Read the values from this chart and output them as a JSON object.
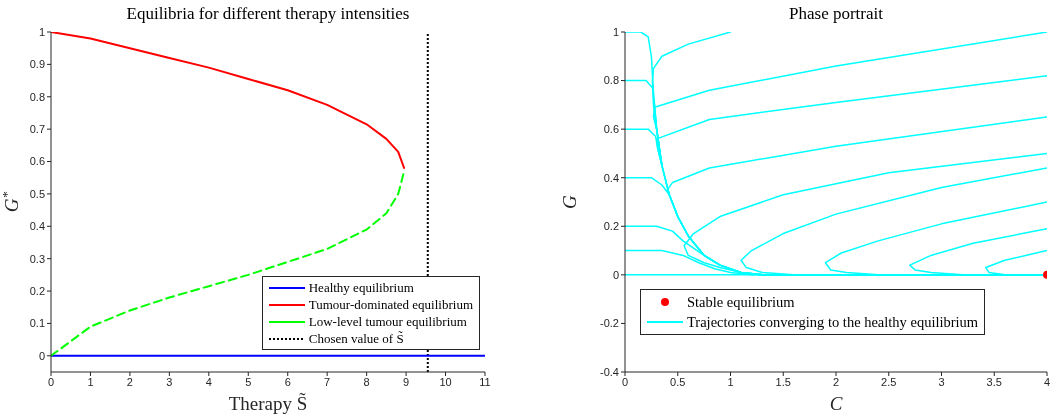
{
  "chart_data": [
    {
      "type": "line",
      "title": "Equilibria for different therapy intensities",
      "xlabel": "Therapy S̃",
      "ylabel": "G$^{*}$",
      "xlim": [
        0,
        11
      ],
      "xticks": [
        0,
        1,
        2,
        3,
        4,
        5,
        6,
        7,
        8,
        9,
        10,
        11
      ],
      "ylim": [
        -0.05,
        1
      ],
      "yticks": [
        0,
        0.1,
        0.2,
        0.3,
        0.4,
        0.5,
        0.6,
        0.7,
        0.8,
        0.9,
        1
      ],
      "legend": "bottom right",
      "series": [
        {
          "name": "Healthy equilibrium",
          "color": "#0000ff",
          "x": [
            0,
            11
          ],
          "values": [
            0,
            0
          ]
        },
        {
          "name": "Tumour-dominated equilibrium",
          "color": "#ff0000",
          "x": [
            0,
            1,
            2,
            3,
            4,
            5,
            6,
            7,
            8,
            8.5,
            8.8,
            8.95
          ],
          "values": [
            1,
            0.98,
            0.95,
            0.92,
            0.89,
            0.855,
            0.82,
            0.775,
            0.715,
            0.67,
            0.63,
            0.58
          ]
        },
        {
          "name": "Low-level tumour equilibrium",
          "color": "#00ff00",
          "line_style": "dashed",
          "x": [
            0,
            1,
            2,
            3,
            4,
            5,
            6,
            7,
            8,
            8.5,
            8.8,
            8.95
          ],
          "values": [
            0,
            0.09,
            0.14,
            0.18,
            0.215,
            0.25,
            0.29,
            0.33,
            0.39,
            0.44,
            0.5,
            0.57
          ]
        }
      ],
      "ref_lines": [
        {
          "axis": "x",
          "value": 9.55,
          "label": "Chosen value of S̃",
          "color": "#000000",
          "line_style": "dotted"
        }
      ]
    },
    {
      "type": "line",
      "title": "Phase portrait",
      "xlabel": "C",
      "ylabel": "G",
      "xlim": [
        0,
        4
      ],
      "xticks": [
        0,
        0.5,
        1,
        1.5,
        2,
        2.5,
        3,
        3.5,
        4
      ],
      "ylim": [
        -0.4,
        1
      ],
      "yticks": [
        -0.4,
        -0.2,
        0,
        0.2,
        0.4,
        0.6,
        0.8,
        1
      ],
      "legend": "bottom",
      "series": [
        {
          "name": "Stable equilibrium",
          "type": "scatter",
          "marker": "circle",
          "color": "#ff0000",
          "x": [
            4
          ],
          "values": [
            0
          ]
        },
        {
          "name": "Trajectories converging to the healthy equilibrium",
          "color": "#00ffff",
          "x": [
            0,
            0.15,
            0.22,
            0.25,
            0.27,
            0.3,
            0.35,
            0.42,
            0.5,
            0.6,
            0.75,
            0.9,
            1.1,
            1.3,
            4
          ],
          "values": [
            1,
            1,
            0.98,
            0.9,
            0.75,
            0.6,
            0.45,
            0.33,
            0.24,
            0.16,
            0.08,
            0.04,
            0.01,
            0,
            0
          ]
        },
        {
          "color": "#00ffff",
          "x": [
            0,
            0.2,
            0.26,
            0.28,
            0.3,
            0.35,
            0.42,
            0.5,
            0.6,
            0.75,
            0.9,
            1.1,
            1.3,
            4
          ],
          "values": [
            0.8,
            0.8,
            0.77,
            0.7,
            0.6,
            0.45,
            0.33,
            0.24,
            0.16,
            0.08,
            0.04,
            0.01,
            0,
            0
          ]
        },
        {
          "color": "#00ffff",
          "x": [
            0,
            0.22,
            0.29,
            0.31,
            0.35,
            0.42,
            0.5,
            0.6,
            0.75,
            0.9,
            1.1,
            1.3,
            4
          ],
          "values": [
            0.6,
            0.6,
            0.57,
            0.52,
            0.45,
            0.33,
            0.24,
            0.16,
            0.08,
            0.04,
            0.01,
            0,
            0
          ]
        },
        {
          "color": "#00ffff",
          "x": [
            0,
            0.25,
            0.35,
            0.42,
            0.5,
            0.6,
            0.75,
            0.9,
            1.1,
            1.3,
            4
          ],
          "values": [
            0.4,
            0.4,
            0.37,
            0.33,
            0.24,
            0.16,
            0.08,
            0.04,
            0.01,
            0,
            0
          ]
        },
        {
          "color": "#00ffff",
          "x": [
            0,
            0.3,
            0.45,
            0.55,
            0.65,
            0.75,
            0.9,
            1.1,
            1.3,
            4
          ],
          "values": [
            0.2,
            0.2,
            0.18,
            0.14,
            0.11,
            0.08,
            0.04,
            0.01,
            0,
            0
          ]
        },
        {
          "color": "#00ffff",
          "x": [
            0,
            0.35,
            0.55,
            0.7,
            0.85,
            1,
            1.2,
            4
          ],
          "values": [
            0.1,
            0.1,
            0.08,
            0.05,
            0.025,
            0.01,
            0,
            0
          ]
        },
        {
          "color": "#00ffff",
          "x": [
            0,
            4
          ],
          "values": [
            0,
            0
          ]
        },
        {
          "color": "#00ffff",
          "x": [
            1,
            0.6,
            0.35,
            0.27,
            0.26,
            0.27,
            0.3,
            0.35
          ],
          "values": [
            1,
            0.95,
            0.9,
            0.85,
            0.8,
            0.7,
            0.6,
            0.45
          ]
        },
        {
          "color": "#00ffff",
          "x": [
            4,
            2,
            0.8,
            0.28,
            0.27,
            0.3,
            0.35
          ],
          "values": [
            1,
            0.86,
            0.76,
            0.69,
            0.65,
            0.6,
            0.45
          ]
        },
        {
          "color": "#00ffff",
          "x": [
            4,
            2,
            0.8,
            0.3,
            0.31,
            0.35
          ],
          "values": [
            0.82,
            0.71,
            0.64,
            0.56,
            0.52,
            0.45
          ]
        },
        {
          "color": "#00ffff",
          "x": [
            4,
            2,
            0.8,
            0.45,
            0.4,
            0.42,
            0.5
          ],
          "values": [
            0.65,
            0.53,
            0.44,
            0.38,
            0.35,
            0.33,
            0.24
          ]
        },
        {
          "color": "#00ffff",
          "x": [
            4,
            2.5,
            1.5,
            0.9,
            0.65,
            0.56,
            0.6,
            0.75,
            0.9,
            1.1,
            1.3
          ],
          "values": [
            0.5,
            0.42,
            0.33,
            0.24,
            0.17,
            0.12,
            0.08,
            0.05,
            0.03,
            0.01,
            0
          ]
        },
        {
          "color": "#00ffff",
          "x": [
            4,
            3,
            2,
            1.5,
            1.2,
            1.1,
            1.15,
            1.3,
            1.6
          ],
          "values": [
            0.44,
            0.36,
            0.25,
            0.17,
            0.1,
            0.06,
            0.03,
            0.01,
            0
          ]
        },
        {
          "color": "#00ffff",
          "x": [
            4,
            3,
            2.4,
            2.05,
            1.9,
            1.95,
            2.1,
            2.4
          ],
          "values": [
            0.3,
            0.21,
            0.14,
            0.09,
            0.05,
            0.02,
            0.01,
            0
          ]
        },
        {
          "color": "#00ffff",
          "x": [
            4,
            3.3,
            2.9,
            2.7,
            2.75,
            2.9,
            3.2
          ],
          "values": [
            0.19,
            0.13,
            0.08,
            0.04,
            0.02,
            0.01,
            0
          ]
        },
        {
          "color": "#00ffff",
          "x": [
            4,
            3.6,
            3.42,
            3.45,
            3.6
          ],
          "values": [
            0.1,
            0.06,
            0.03,
            0.01,
            0
          ]
        }
      ]
    }
  ]
}
